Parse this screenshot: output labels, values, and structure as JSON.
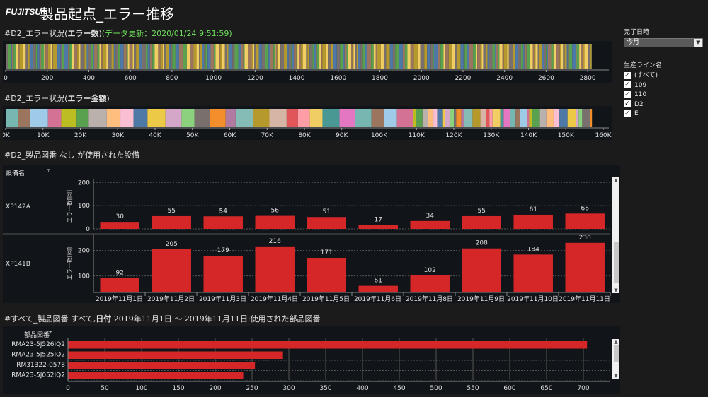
{
  "header": {
    "brand": "FUJITSU",
    "title": "製品起点_エラー推移"
  },
  "section1": {
    "title_prefix": "#D2_エラー状況(",
    "title_bold": "エラー数",
    "title_suffix": ")",
    "update": "(データ更新：2020/01/24 9:51:59)",
    "axis": [
      "0",
      "200",
      "400",
      "600",
      "800",
      "1000",
      "1200",
      "1400",
      "1600",
      "1800",
      "2000",
      "2200",
      "2400",
      "2600",
      "2800"
    ]
  },
  "section2": {
    "title_prefix": "#D2_エラー状況(",
    "title_bold": "エラー金額",
    "title_suffix": ")",
    "axis": [
      "0K",
      "10K",
      "20K",
      "30K",
      "40K",
      "50K",
      "60K",
      "70K",
      "80K",
      "90K",
      "100K",
      "110K",
      "120K",
      "130K",
      "140K",
      "150K",
      "160K"
    ]
  },
  "section3": {
    "title": "#D2_製品図番  なし  が使用された設備",
    "col_header": "設備名",
    "y_label": "エラー数[回]"
  },
  "section4": {
    "title_prefix": "#すべて_製品図番 すべて,",
    "title_bold1": "日付",
    "title_mid": "  2019年11月1日 〜 2019年11月11",
    "title_bold2": "日",
    "title_suffix": ":使用された部品図番",
    "col_header": "部品図番"
  },
  "filters": {
    "date_label": "完了日時",
    "date_value": "今月",
    "line_label": "生産ライン名",
    "line_options": [
      "(すべて)",
      "109",
      "110",
      "D2",
      "E"
    ]
  },
  "colors": {
    "bar": "#d62728",
    "accent_green": "#6dde5a"
  },
  "chart_data": [
    {
      "type": "bar",
      "title": "#D2_エラー状況(エラー数)",
      "orientation": "horizontal-stacked",
      "xlim": [
        0,
        2800
      ],
      "total_approx": 2820
    },
    {
      "type": "bar",
      "title": "#D2_エラー状況(エラー金額)",
      "orientation": "horizontal-stacked",
      "xlim": [
        0,
        160000
      ],
      "total_approx": 157000
    },
    {
      "type": "bar",
      "title": "#D2_製品図番  なし  が使用された設備",
      "ylabel": "エラー数[回]",
      "categories": [
        "2019年11月1日",
        "2019年11月2日",
        "2019年11月3日",
        "2019年11月4日",
        "2019年11月5日",
        "2019年11月6日",
        "2019年11月8日",
        "2019年11月9日",
        "2019年11月10日",
        "2019年11月11日"
      ],
      "panels": [
        {
          "name": "XP142A",
          "values": [
            30,
            55,
            54,
            56,
            51,
            17,
            34,
            55,
            61,
            66
          ],
          "yticks": [
            "0",
            "100",
            "200"
          ],
          "ylim": [
            0,
            210
          ]
        },
        {
          "name": "XP141B",
          "values": [
            92,
            205,
            179,
            216,
            171,
            61,
            102,
            208,
            184,
            230
          ],
          "yticks": [
            "100",
            "200"
          ],
          "ylim": [
            35,
            260
          ]
        }
      ]
    },
    {
      "type": "bar",
      "orientation": "horizontal",
      "title": "#すべて_製品図番 すべて,日付 2019年11月1日 〜 2019年11月11日:使用された部品図番",
      "categories": [
        "RMA23-5J526IQ2",
        "RMA23-5J525IQ2",
        "RM31322-0578",
        "RMA23-5J052IQ2"
      ],
      "values": [
        705,
        292,
        254,
        238
      ],
      "xticks": [
        "0",
        "50",
        "100",
        "150",
        "200",
        "250",
        "300",
        "350",
        "400",
        "450",
        "500",
        "550",
        "600",
        "650",
        "700"
      ],
      "xlim": [
        0,
        740
      ]
    }
  ]
}
